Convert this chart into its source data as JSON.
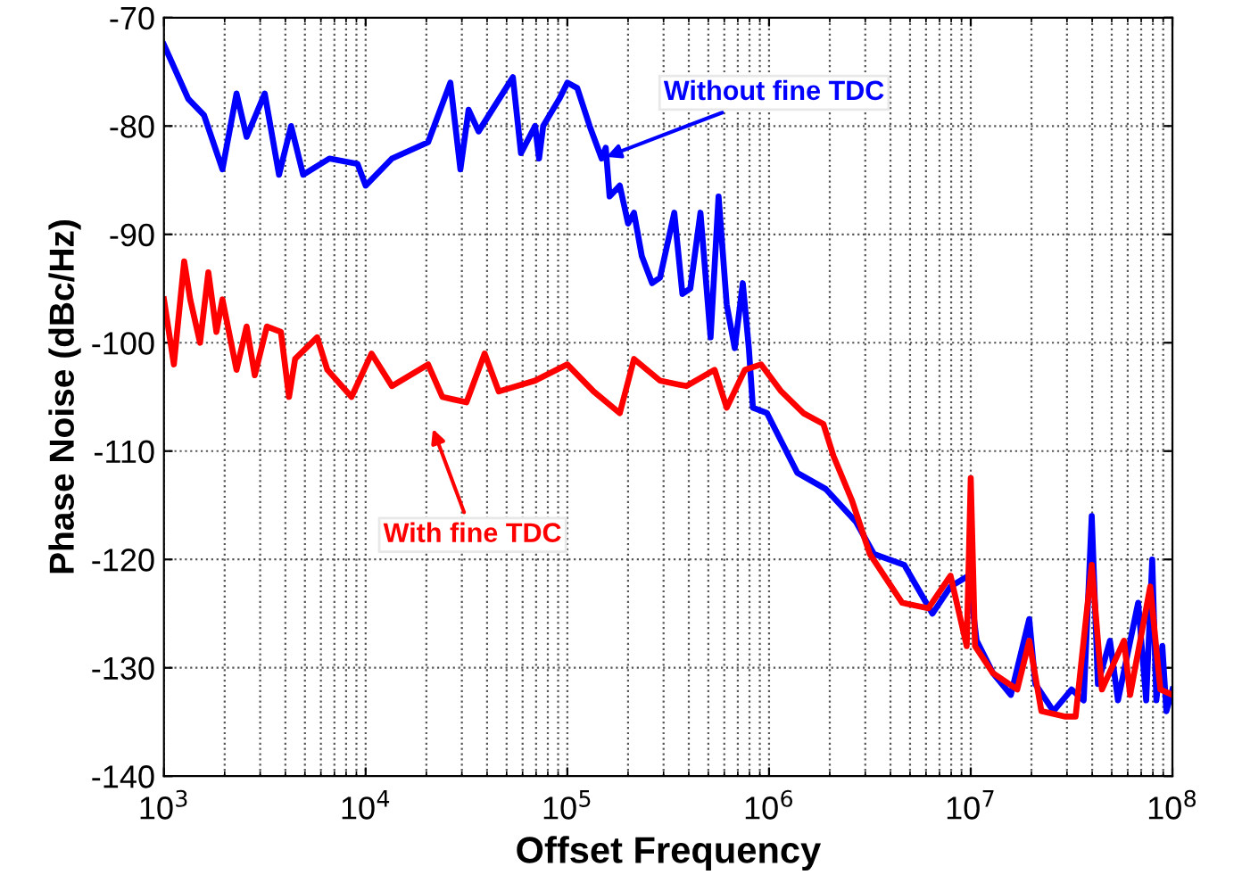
{
  "chart_data": {
    "type": "line",
    "xlabel": "Offset Frequency",
    "ylabel": "Phase Noise (dBc/Hz)",
    "log": "x",
    "grid": true,
    "xlim": [
      1000,
      100000000
    ],
    "ylim": [
      -140,
      -70
    ],
    "xticks": [
      {
        "value": 1000,
        "label": "10$^{3}$"
      },
      {
        "value": 10000,
        "label": "10$^{4}$"
      },
      {
        "value": 100000,
        "label": "10$^{5}$"
      },
      {
        "value": 1000000,
        "label": "10$^{6}$"
      },
      {
        "value": 10000000,
        "label": "10$^{7}$"
      },
      {
        "value": 100000000,
        "label": "10$^{8}$"
      }
    ],
    "yticks": [
      -140,
      -130,
      -120,
      -110,
      -100,
      -90,
      -80,
      -70
    ],
    "series": [
      {
        "color": "#0000ff",
        "x": [
          1000,
          1320,
          1580,
          1950,
          2290,
          2570,
          3160,
          3720,
          4270,
          4900,
          6610,
          9120,
          10000,
          13500,
          20400,
          26300,
          29500,
          32400,
          36300,
          53700,
          58900,
          69200,
          72400,
          75900,
          91200,
          100000,
          112000,
          129000,
          148000,
          155000,
          162000,
          182000,
          200000,
          214000,
          234000,
          263000,
          288000,
          339000,
          372000,
          407000,
          457000,
          513000,
          562000,
          617000,
          676000,
          741000,
          794000,
          832000,
          977000,
          1380000,
          1910000,
          2690000,
          3310000,
          4680000,
          6460000,
          7940000,
          9770000,
          10700000,
          12900000,
          15800000,
          19500000,
          20900000,
          25700000,
          31600000,
          36300000,
          39800000,
          42700000,
          49000000,
          53700000,
          67600000,
          74100000,
          79400000,
          83200000,
          89100000,
          93300000,
          100000000
        ],
        "values": [
          -72.5,
          -77.5,
          -79,
          -84,
          -77,
          -81,
          -77,
          -84.5,
          -80,
          -84.5,
          -83,
          -83.5,
          -85.5,
          -83,
          -81.5,
          -76,
          -84,
          -78.5,
          -80.5,
          -75.5,
          -82.5,
          -80,
          -83,
          -80,
          -77.5,
          -76,
          -76.5,
          -80,
          -83,
          -82,
          -86.5,
          -85.5,
          -89,
          -88,
          -92,
          -94.5,
          -94,
          -88,
          -95.5,
          -95,
          -88,
          -99.5,
          -86.5,
          -96.5,
          -100.5,
          -94.5,
          -100.5,
          -106,
          -106.5,
          -112,
          -113.5,
          -116.5,
          -119.5,
          -120.5,
          -125,
          -122.5,
          -121.5,
          -127.5,
          -130.5,
          -132.5,
          -125.5,
          -131.5,
          -134,
          -132,
          -133,
          -116,
          -131.5,
          -127.5,
          -133,
          -124,
          -133,
          -120,
          -133,
          -128,
          -134,
          -132
        ]
      },
      {
        "color": "#ff0000",
        "x": [
          1000,
          1120,
          1260,
          1350,
          1510,
          1660,
          1820,
          1950,
          2290,
          2570,
          2820,
          3240,
          3800,
          4170,
          4470,
          5750,
          6460,
          8510,
          10700,
          13500,
          20400,
          24000,
          31600,
          38900,
          45700,
          69200,
          100000,
          135000,
          182000,
          214000,
          288000,
          389000,
          537000,
          617000,
          759000,
          912000,
          1150000,
          1480000,
          1860000,
          2090000,
          2570000,
          3160000,
          3720000,
          4570000,
          6170000,
          7940000,
          9550000,
          10000000,
          10500000,
          12900000,
          17000000,
          19500000,
          22400000,
          29500000,
          33100000,
          39800000,
          44700000,
          57500000,
          61700000,
          77600000,
          87100000,
          100000000
        ],
        "values": [
          -96,
          -102,
          -92.5,
          -96,
          -100,
          -93.5,
          -99,
          -96,
          -102.5,
          -98.5,
          -103,
          -98.5,
          -99,
          -105,
          -101.5,
          -99.5,
          -102.5,
          -105,
          -101,
          -104,
          -102,
          -105,
          -105.5,
          -101,
          -104.5,
          -103.5,
          -102,
          -104.5,
          -106.5,
          -101.5,
          -103.5,
          -104,
          -102.5,
          -106,
          -102.5,
          -102,
          -104.5,
          -106.5,
          -107.5,
          -110.5,
          -114.5,
          -119.5,
          -121.5,
          -124,
          -124.5,
          -121.5,
          -128,
          -112.5,
          -128,
          -130.5,
          -132,
          -127.5,
          -134,
          -134.5,
          -134.5,
          -120.5,
          -132,
          -127.5,
          -132.5,
          -122.5,
          -132,
          -132.5
        ]
      }
    ],
    "annotations": [
      {
        "text": "Without fine TDC",
        "x": 148000,
        "y": -83
      },
      "With fine TDC"
    ]
  }
}
